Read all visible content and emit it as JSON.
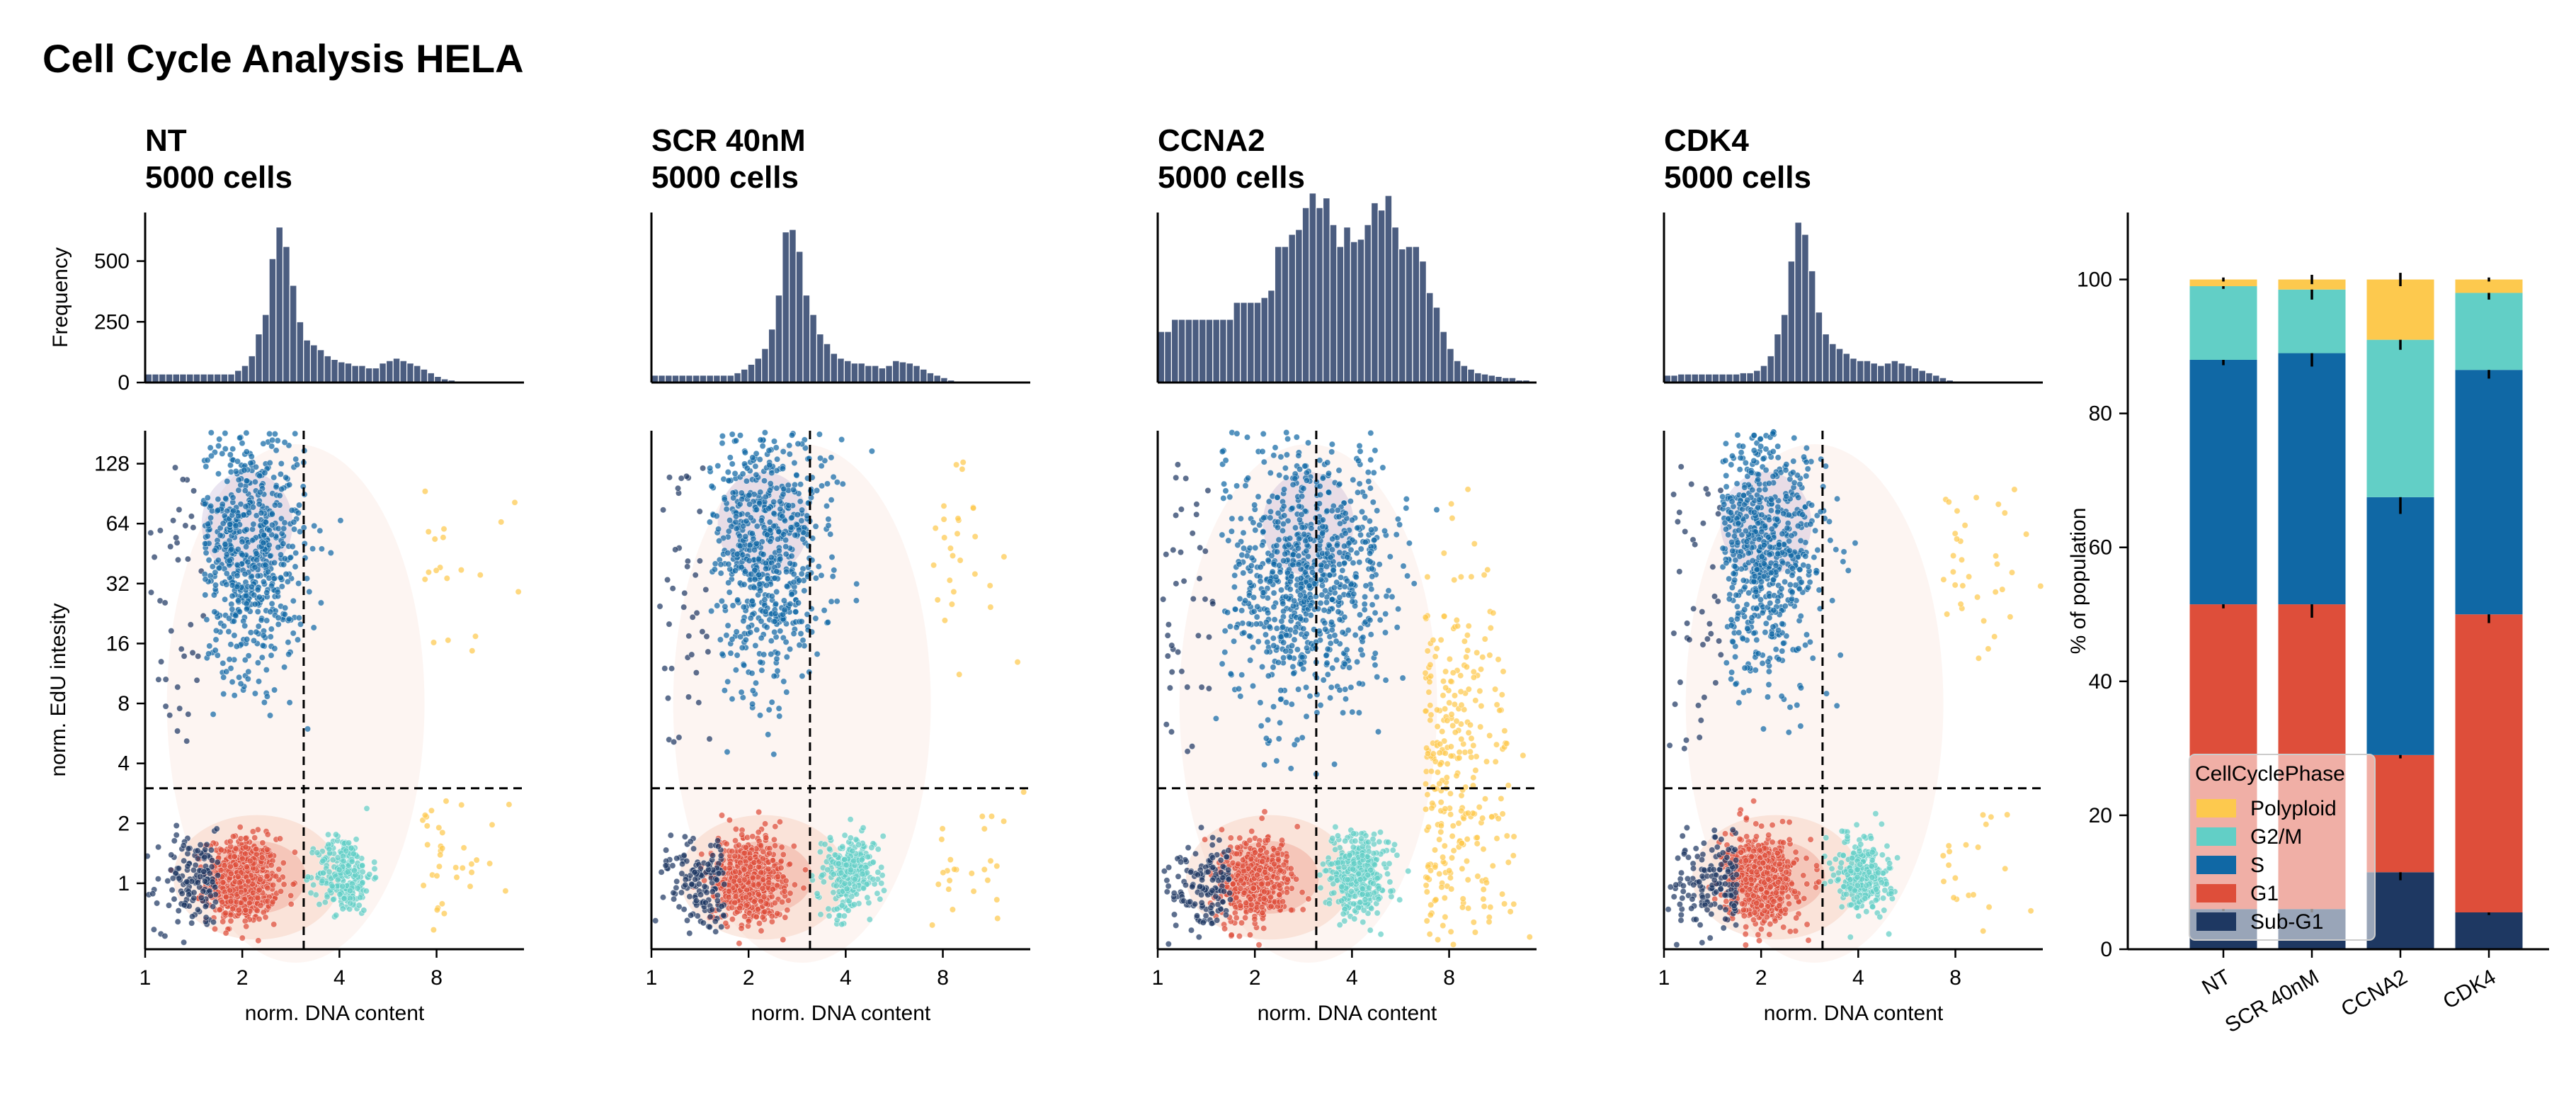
{
  "figure": {
    "title": "Cell Cycle Analysis HELA",
    "colors": {
      "Sub-G1": "#1e3862",
      "G1": "#de4e3a",
      "S": "#1068a5",
      "G2/M": "#62cfc6",
      "Polyploid": "#fdc94e",
      "histogram": "#4b5d80",
      "density": "#f4c2ad"
    }
  },
  "panels": [
    {
      "id": "nt",
      "title": "NT",
      "subtitle": "5000 cells",
      "hist_counts": [
        35,
        35,
        35,
        35,
        35,
        35,
        35,
        35,
        35,
        35,
        35,
        35,
        35,
        50,
        70,
        110,
        200,
        280,
        510,
        640,
        560,
        400,
        250,
        175,
        155,
        135,
        110,
        95,
        85,
        80,
        70,
        70,
        60,
        60,
        80,
        90,
        100,
        90,
        80,
        70,
        55,
        40,
        25,
        15,
        10,
        5,
        3,
        2,
        1,
        0,
        0,
        0,
        0,
        0,
        0
      ],
      "s_mu": 1.05,
      "s_sd": 0.3,
      "s_mean_y": 4.0,
      "s_sd_y": 1.5
    },
    {
      "id": "scr",
      "title": "SCR 40nM",
      "subtitle": "5000 cells",
      "hist_counts": [
        30,
        30,
        30,
        30,
        30,
        30,
        30,
        30,
        30,
        30,
        30,
        30,
        40,
        55,
        75,
        100,
        140,
        220,
        360,
        620,
        630,
        540,
        360,
        280,
        200,
        160,
        120,
        100,
        90,
        80,
        80,
        70,
        70,
        60,
        70,
        90,
        85,
        80,
        70,
        55,
        40,
        30,
        20,
        10,
        5,
        3,
        1,
        0,
        0,
        0,
        0,
        0,
        0,
        0,
        0
      ],
      "s_mu": 1.15,
      "s_sd": 0.33,
      "s_mean_y": 4.0,
      "s_sd_y": 1.6
    },
    {
      "id": "ccna2",
      "title": "CCNA2",
      "subtitle": "5000 cells",
      "hist_counts": [
        210,
        210,
        260,
        260,
        260,
        260,
        260,
        260,
        260,
        260,
        260,
        330,
        330,
        330,
        330,
        350,
        380,
        560,
        560,
        610,
        630,
        720,
        780,
        720,
        760,
        650,
        560,
        640,
        580,
        590,
        650,
        740,
        710,
        770,
        640,
        550,
        560,
        560,
        500,
        370,
        310,
        210,
        140,
        90,
        70,
        55,
        40,
        35,
        30,
        25,
        20,
        20,
        10,
        10,
        0
      ],
      "s_mu": 1.55,
      "s_sd": 0.45,
      "s_mean_y": 3.5,
      "s_sd_y": 1.6
    },
    {
      "id": "cdk4",
      "title": "CDK4",
      "subtitle": "5000 cells",
      "hist_counts": [
        30,
        30,
        35,
        35,
        35,
        35,
        35,
        35,
        35,
        35,
        35,
        40,
        40,
        50,
        70,
        110,
        200,
        280,
        500,
        660,
        610,
        460,
        290,
        200,
        160,
        140,
        120,
        100,
        90,
        90,
        80,
        70,
        80,
        90,
        80,
        70,
        60,
        50,
        40,
        30,
        20,
        10,
        5,
        3,
        1,
        0,
        0,
        0,
        0,
        0,
        0,
        0,
        0,
        0,
        0
      ],
      "s_mu": 1.05,
      "s_sd": 0.3,
      "s_mean_y": 4.0,
      "s_sd_y": 1.5
    }
  ],
  "axes": {
    "hist_ylabel": "Frequency",
    "hist_yticks": [
      "0",
      "250",
      "500"
    ],
    "scatter_ylabel": "norm. EdU intesity",
    "scatter_yticks": [
      "1",
      "2",
      "4",
      "8",
      "16",
      "32",
      "64",
      "128"
    ],
    "xlabel": "norm. DNA content",
    "xticks": [
      "1",
      "2",
      "4",
      "8"
    ],
    "gate_x": 3.1,
    "gate_y": 3.0
  },
  "chart_data": {
    "type": "bar",
    "stacked": true,
    "categories": [
      "NT",
      "SCR 40nM",
      "CCNA2",
      "CDK4"
    ],
    "ylabel": "% of population",
    "ylim": [
      0,
      110
    ],
    "yticks": [
      "0",
      "20",
      "40",
      "60",
      "80",
      "100"
    ],
    "legend_title": "CellCyclePhase",
    "legend_position": "lower-left",
    "legend_order": [
      "Polyploid",
      "G2/M",
      "S",
      "G1",
      "Sub-G1"
    ],
    "series": [
      {
        "name": "Sub-G1",
        "values": [
          6,
          6,
          11.5,
          5.5
        ]
      },
      {
        "name": "G1",
        "values": [
          45.5,
          45.5,
          17.5,
          44.5
        ]
      },
      {
        "name": "S",
        "values": [
          36.5,
          37.5,
          38.5,
          36.5
        ]
      },
      {
        "name": "G2/M",
        "values": [
          11,
          9.5,
          23.5,
          11.5
        ]
      },
      {
        "name": "Polyploid",
        "values": [
          1,
          1.5,
          9,
          2
        ]
      }
    ],
    "errors_at_tops": [
      [
        0.3,
        0.5,
        1.2,
        0.4
      ],
      [
        0.6,
        2.0,
        0.5,
        1.3
      ],
      [
        0.8,
        2.0,
        2.5,
        1.3
      ],
      [
        0.4,
        1.5,
        1.5,
        1.0
      ],
      [
        0.3,
        0.7,
        1.0,
        0.3
      ]
    ]
  }
}
